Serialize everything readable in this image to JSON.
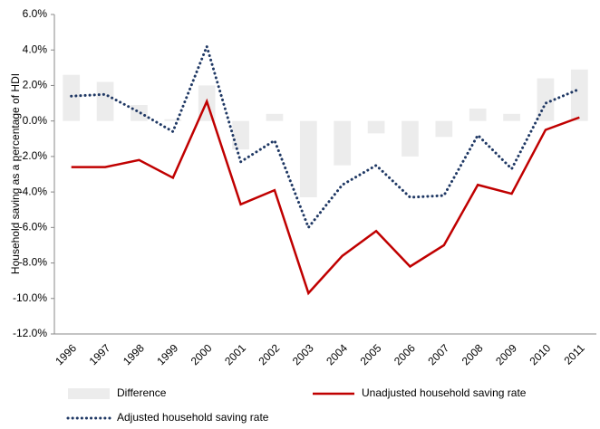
{
  "chart_data": {
    "type": "combo",
    "y_label": "Household saving  as a percentage of HDI",
    "categories": [
      "1996",
      "1997",
      "1998",
      "1999",
      "2000",
      "2001",
      "2002",
      "2003",
      "2004",
      "2005",
      "2006",
      "2007",
      "2008",
      "2009",
      "2010",
      "2011"
    ],
    "series": [
      {
        "name": "Difference",
        "type": "bar",
        "color": "#ececec",
        "values": [
          2.6,
          2.2,
          0.9,
          0.1,
          2.0,
          -1.6,
          0.4,
          -4.3,
          -2.5,
          -0.7,
          -2.0,
          -0.9,
          0.7,
          0.4,
          2.4,
          2.9
        ]
      },
      {
        "name": "Unadjusted household saving rate",
        "type": "line",
        "color": "#c00000",
        "style": "solid",
        "values": [
          -2.6,
          -2.6,
          -2.2,
          -3.2,
          1.1,
          -4.7,
          -3.9,
          -9.7,
          -7.6,
          -6.2,
          -8.2,
          -7.0,
          -3.6,
          -4.1,
          -0.5,
          0.2
        ]
      },
      {
        "name": "Adjusted household saving rate",
        "type": "line",
        "color": "#1f3864",
        "style": "dotted",
        "values": [
          1.4,
          1.5,
          0.5,
          -0.6,
          4.2,
          -2.3,
          -1.1,
          -6.0,
          -3.6,
          -2.5,
          -4.3,
          -4.2,
          -0.8,
          -2.7,
          1.0,
          1.8
        ]
      }
    ],
    "ylim": [
      -12,
      6
    ],
    "yticks": [
      {
        "value": -12,
        "label": "-12.0%"
      },
      {
        "value": -10,
        "label": "-10.0%"
      },
      {
        "value": -8,
        "label": "-8.0%"
      },
      {
        "value": -6,
        "label": "-6.0%"
      },
      {
        "value": -4,
        "label": "-4.0%"
      },
      {
        "value": -2,
        "label": "-2.0%"
      },
      {
        "value": 0,
        "label": "0.0%"
      },
      {
        "value": 2,
        "label": "2.0%"
      },
      {
        "value": 4,
        "label": "4.0%"
      },
      {
        "value": 6,
        "label": "6.0%"
      }
    ],
    "grid": false,
    "legend": "bottom"
  }
}
